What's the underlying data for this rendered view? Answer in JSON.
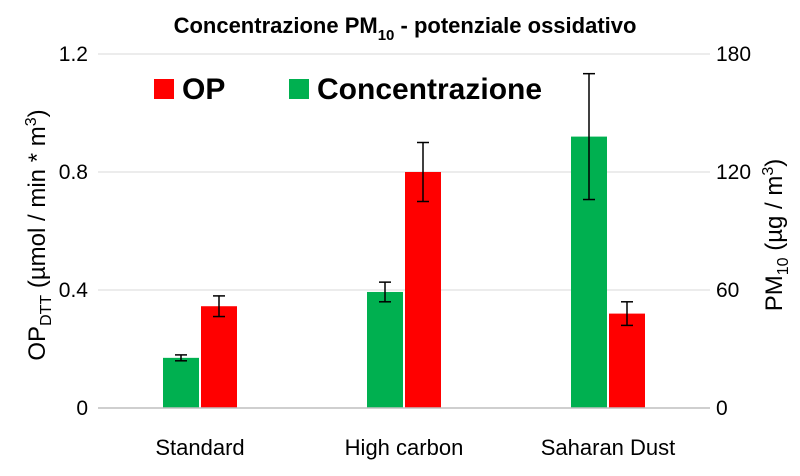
{
  "chart_data": {
    "type": "bar",
    "title": {
      "main": "Concentrazione PM",
      "sub": "10",
      "rest": " - potenziale ossidativo"
    },
    "categories": [
      "Standard",
      "High carbon",
      "Saharan Dust"
    ],
    "series": [
      {
        "name": "Concentrazione",
        "axis": "right",
        "color": "#00B050",
        "values": [
          25.5,
          59,
          138
        ],
        "errors": [
          1.5,
          5,
          32
        ]
      },
      {
        "name": "OP",
        "axis": "left",
        "color": "#FF0000",
        "values": [
          0.345,
          0.8,
          0.32
        ],
        "errors": [
          0.035,
          0.1,
          0.04
        ]
      }
    ],
    "y_left": {
      "label_main": "OP",
      "label_sub": "DTT",
      "label_rest": " (µmol / min * m",
      "label_sup": "3",
      "label_end": ")",
      "range": [
        0,
        1.2
      ],
      "ticks": [
        "0",
        "0.4",
        "0.8",
        "1.2"
      ]
    },
    "y_right": {
      "label_main": "PM",
      "label_sub": "10",
      "label_rest": " (µg / m",
      "label_sup": "3",
      "label_end": ")",
      "range": [
        0,
        180
      ],
      "ticks": [
        "0",
        "60",
        "120",
        "180"
      ]
    },
    "legend": {
      "placement": "top-left",
      "items": [
        "OP",
        "Concentrazione"
      ]
    },
    "grid": true
  }
}
